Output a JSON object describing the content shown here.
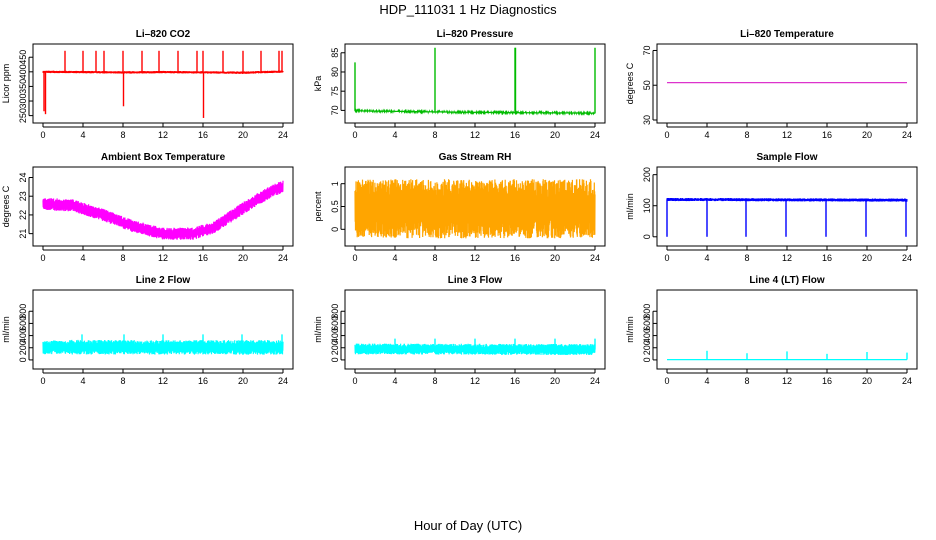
{
  "page": {
    "title": "HDP_111031  1 Hz Diagnostics",
    "xlabel": "Hour of Day (UTC)"
  },
  "chart_data": [
    {
      "type": "line",
      "title": "Li–820 CO2",
      "ylabel": "Licor ppm",
      "color": "#ff0000",
      "xlim": [
        0,
        24
      ],
      "xticks": [
        0,
        4,
        8,
        12,
        16,
        20,
        24
      ],
      "ylim": [
        235,
        485
      ],
      "yticks": [
        250,
        300,
        350,
        400,
        450
      ],
      "baseline": [
        [
          0,
          400
        ],
        [
          4,
          399
        ],
        [
          8,
          398
        ],
        [
          12,
          399
        ],
        [
          16,
          398
        ],
        [
          20,
          397
        ],
        [
          24,
          401
        ]
      ],
      "noise": 4,
      "spikes": [
        [
          0.1,
          265
        ],
        [
          0.25,
          255
        ],
        [
          2.2,
          472
        ],
        [
          4.0,
          472
        ],
        [
          5.3,
          472
        ],
        [
          6.1,
          472
        ],
        [
          8.0,
          472
        ],
        [
          8.05,
          282
        ],
        [
          9.9,
          472
        ],
        [
          11.6,
          472
        ],
        [
          13.5,
          472
        ],
        [
          15.4,
          472
        ],
        [
          16.0,
          472
        ],
        [
          16.05,
          242
        ],
        [
          18.0,
          472
        ],
        [
          20.0,
          472
        ],
        [
          21.8,
          472
        ],
        [
          23.6,
          472
        ],
        [
          23.9,
          472
        ]
      ]
    },
    {
      "type": "line",
      "title": "Li–820 Pressure",
      "ylabel": "kPa",
      "color": "#00bb00",
      "xlim": [
        0,
        24
      ],
      "xticks": [
        0,
        4,
        8,
        12,
        16,
        20,
        24
      ],
      "ylim": [
        67.5,
        86.5
      ],
      "yticks": [
        70,
        75,
        80,
        85
      ],
      "baseline": [
        [
          0,
          69.9
        ],
        [
          8,
          69.6
        ],
        [
          16,
          69.4
        ],
        [
          24,
          69.3
        ]
      ],
      "noise": 0.15,
      "spikes": [
        [
          0.0,
          82.5
        ],
        [
          8.0,
          86.3
        ],
        [
          16.0,
          86.3
        ],
        [
          16.05,
          86.3
        ],
        [
          24.0,
          86.3
        ]
      ]
    },
    {
      "type": "line",
      "title": "Li–820 Temperature",
      "ylabel": "degrees C",
      "color": "#dd33cc",
      "xlim": [
        0,
        24
      ],
      "xticks": [
        0,
        4,
        8,
        12,
        16,
        20,
        24
      ],
      "ylim": [
        30,
        72
      ],
      "yticks": [
        30,
        50,
        70
      ],
      "baseline": [
        [
          0,
          51.5
        ],
        [
          24,
          51.5
        ]
      ],
      "noise": 0,
      "spikes": []
    },
    {
      "type": "line",
      "title": "Ambient Box Temperature",
      "ylabel": "degrees C",
      "color": "#ff00ff",
      "xlim": [
        0,
        24
      ],
      "xticks": [
        0,
        4,
        8,
        12,
        16,
        20,
        24
      ],
      "ylim": [
        20.5,
        24.4
      ],
      "yticks": [
        21,
        22,
        23,
        24
      ],
      "baseline": [
        [
          0,
          22.6
        ],
        [
          3,
          22.5
        ],
        [
          6,
          22.0
        ],
        [
          9,
          21.4
        ],
        [
          12,
          21.0
        ],
        [
          15,
          21.0
        ],
        [
          17,
          21.3
        ],
        [
          19,
          22.0
        ],
        [
          21,
          22.7
        ],
        [
          23,
          23.3
        ],
        [
          24,
          23.5
        ]
      ],
      "noise": 0.33,
      "spikes": []
    },
    {
      "type": "line",
      "title": "Gas Stream RH",
      "ylabel": "percent",
      "color": "#ffa500",
      "xlim": [
        0,
        24
      ],
      "xticks": [
        0,
        4,
        8,
        12,
        16,
        20,
        24
      ],
      "ylim": [
        -0.3,
        1.3
      ],
      "yticks": [
        0.0,
        0.5,
        1.0
      ],
      "baseline": [
        [
          0,
          0.45
        ],
        [
          24,
          0.45
        ]
      ],
      "noise": 0.65,
      "spikes": []
    },
    {
      "type": "line",
      "title": "Sample Flow",
      "ylabel": "ml/min",
      "color": "#0000ff",
      "xlim": [
        0,
        24
      ],
      "xticks": [
        0,
        4,
        8,
        12,
        16,
        20,
        24
      ],
      "ylim": [
        -20,
        215
      ],
      "yticks": [
        0,
        100,
        200
      ],
      "baseline": [
        [
          0,
          120
        ],
        [
          24,
          118
        ]
      ],
      "noise": 5,
      "spikes": [
        [
          0.0,
          0
        ],
        [
          4.0,
          0
        ],
        [
          7.9,
          0
        ],
        [
          11.9,
          0
        ],
        [
          15.9,
          0
        ],
        [
          19.9,
          0
        ],
        [
          23.9,
          0
        ]
      ]
    },
    {
      "type": "line",
      "title": "Line 2 Flow",
      "ylabel": "ml/min",
      "color": "#00ffff",
      "xlim": [
        0,
        24
      ],
      "xticks": [
        0,
        4,
        8,
        12,
        16,
        20,
        24
      ],
      "ylim": [
        -100,
        1100
      ],
      "yticks": [
        0,
        200,
        400,
        600,
        800
      ],
      "baseline": [
        [
          0,
          210
        ],
        [
          24,
          205
        ]
      ],
      "noise": 120,
      "spikes": [
        [
          3.9,
          420
        ],
        [
          8.1,
          420
        ],
        [
          12.0,
          420
        ],
        [
          16.0,
          420
        ],
        [
          19.9,
          420
        ],
        [
          23.9,
          420
        ]
      ]
    },
    {
      "type": "line",
      "title": "Line 3 Flow",
      "ylabel": "ml/min",
      "color": "#00ffff",
      "xlim": [
        0,
        24
      ],
      "xticks": [
        0,
        4,
        8,
        12,
        16,
        20,
        24
      ],
      "ylim": [
        -100,
        1100
      ],
      "yticks": [
        0,
        200,
        400,
        600,
        800
      ],
      "baseline": [
        [
          0,
          180
        ],
        [
          24,
          170
        ]
      ],
      "noise": 90,
      "spikes": [
        [
          4.0,
          350
        ],
        [
          8.0,
          350
        ],
        [
          12.0,
          350
        ],
        [
          16.0,
          350
        ],
        [
          20.0,
          350
        ],
        [
          24.0,
          350
        ]
      ]
    },
    {
      "type": "line",
      "title": "Line 4 (LT) Flow",
      "ylabel": "ml/min",
      "color": "#00ffff",
      "xlim": [
        0,
        24
      ],
      "xticks": [
        0,
        4,
        8,
        12,
        16,
        20,
        24
      ],
      "ylim": [
        -100,
        1100
      ],
      "yticks": [
        0,
        200,
        400,
        600,
        800
      ],
      "baseline": [
        [
          0,
          5
        ],
        [
          24,
          5
        ]
      ],
      "noise": 0,
      "spikes": [
        [
          4.0,
          150
        ],
        [
          8.0,
          110
        ],
        [
          12.0,
          140
        ],
        [
          16.0,
          100
        ],
        [
          20.0,
          130
        ],
        [
          24.0,
          120
        ]
      ]
    }
  ]
}
